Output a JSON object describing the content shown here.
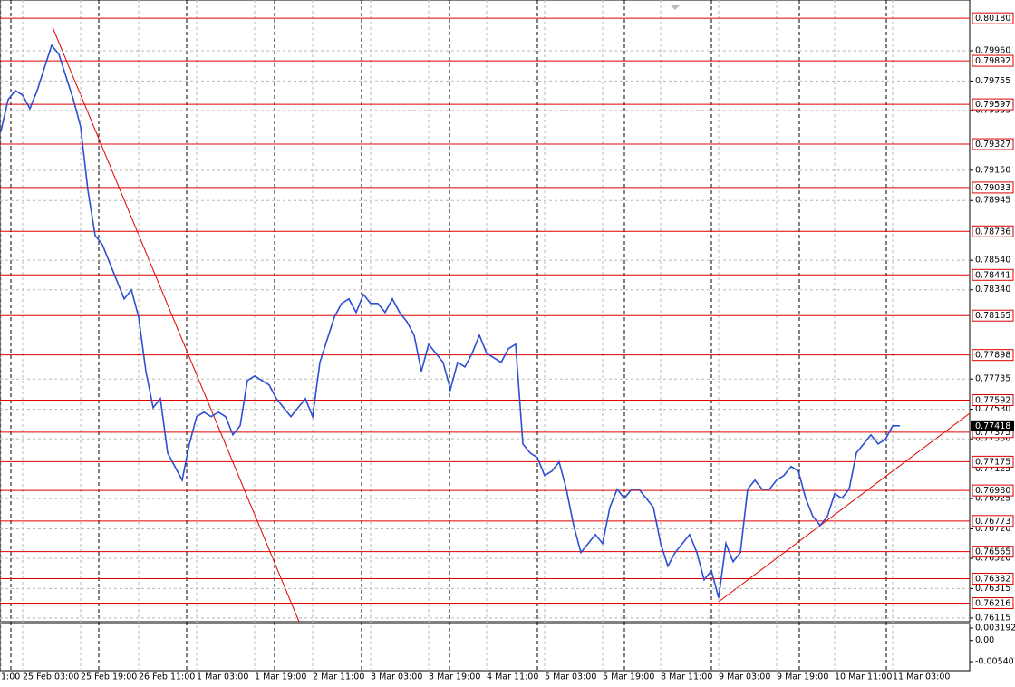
{
  "chart_data": {
    "type": "line",
    "color": "#2d4fd1",
    "ylim": [
      0.7609,
      0.80304
    ],
    "yticks": [
      {
        "value": 0.7996,
        "label": "0.79960"
      },
      {
        "value": 0.79755,
        "label": "0.79755"
      },
      {
        "value": 0.79555,
        "label": "0.79555"
      },
      {
        "value": 0.7915,
        "label": "0.79150"
      },
      {
        "value": 0.78945,
        "label": "0.78945"
      },
      {
        "value": 0.7854,
        "label": "0.78540"
      },
      {
        "value": 0.7834,
        "label": "0.78340"
      },
      {
        "value": 0.77735,
        "label": "0.77735"
      },
      {
        "value": 0.7753,
        "label": "0.77530"
      },
      {
        "value": 0.7733,
        "label": "0.77330"
      },
      {
        "value": 0.77125,
        "label": "0.77125"
      },
      {
        "value": 0.76925,
        "label": "0.76925"
      },
      {
        "value": 0.7672,
        "label": "0.76720"
      },
      {
        "value": 0.7652,
        "label": "0.76520"
      },
      {
        "value": 0.76315,
        "label": "0.76315"
      },
      {
        "value": 0.76115,
        "label": "0.76115"
      }
    ],
    "levels": [
      {
        "value": 0.8018,
        "label": "0.80180"
      },
      {
        "value": 0.79892,
        "label": "0.79892"
      },
      {
        "value": 0.79597,
        "label": "0.79597"
      },
      {
        "value": 0.79327,
        "label": "0.79327"
      },
      {
        "value": 0.79033,
        "label": "0.79033"
      },
      {
        "value": 0.78736,
        "label": "0.78736"
      },
      {
        "value": 0.78441,
        "label": "0.78441"
      },
      {
        "value": 0.78165,
        "label": "0.78165"
      },
      {
        "value": 0.77898,
        "label": "0.77898"
      },
      {
        "value": 0.77592,
        "label": "0.77592"
      },
      {
        "value": 0.77375,
        "label": "0.77375"
      },
      {
        "value": 0.77175,
        "label": "0.77175"
      },
      {
        "value": 0.7698,
        "label": "0.76980"
      },
      {
        "value": 0.76773,
        "label": "0.76773"
      },
      {
        "value": 0.76565,
        "label": "0.76565"
      },
      {
        "value": 0.76382,
        "label": "0.76382"
      },
      {
        "value": 0.76216,
        "label": "0.76216"
      }
    ],
    "level_color": "#e00000",
    "current_price": 0.77418,
    "categories": [
      "1:00",
      null,
      null,
      "25 Feb 03:00",
      null,
      null,
      null,
      null,
      null,
      null,
      null,
      "25 Feb 19:00",
      null,
      null,
      null,
      null,
      null,
      null,
      null,
      "26 Feb 11:00",
      null,
      null,
      null,
      null,
      null,
      null,
      null,
      "1 Mar 03:00",
      null,
      null,
      null,
      null,
      null,
      null,
      null,
      "1 Mar 19:00",
      null,
      null,
      null,
      null,
      null,
      null,
      null,
      "2 Mar 11:00",
      null,
      null,
      null,
      null,
      null,
      null,
      null,
      "3 Mar 03:00",
      null,
      null,
      null,
      null,
      null,
      null,
      null,
      "3 Mar 19:00",
      null,
      null,
      null,
      null,
      null,
      null,
      null,
      "4 Mar 11:00",
      null,
      null,
      null,
      null,
      null,
      null,
      null,
      "5 Mar 03:00",
      null,
      null,
      null,
      null,
      null,
      null,
      null,
      "5 Mar 19:00",
      null,
      null,
      null,
      null,
      null,
      null,
      null,
      "8 Mar 11:00",
      null,
      null,
      null,
      null,
      null,
      null,
      null,
      "9 Mar 03:00",
      null,
      null,
      null,
      null,
      null,
      null,
      null,
      "9 Mar 19:00",
      null,
      null,
      null,
      null,
      null,
      null,
      null,
      "10 Mar 11:00",
      null,
      null,
      null,
      null,
      null,
      null,
      null,
      "11 Mar 03:00",
      null
    ],
    "values": [
      0.79414,
      0.79629,
      0.7969,
      0.79659,
      0.79567,
      0.7969,
      0.79844,
      0.79997,
      0.79936,
      0.79782,
      0.79629,
      0.79444,
      0.79015,
      0.78708,
      0.78646,
      0.78523,
      0.78401,
      0.78278,
      0.78339,
      0.78155,
      0.77787,
      0.77541,
      0.77602,
      0.77234,
      0.77142,
      0.7705,
      0.77295,
      0.7748,
      0.7751,
      0.7748,
      0.7751,
      0.7748,
      0.77357,
      0.77418,
      0.77725,
      0.77756,
      0.77725,
      0.77695,
      0.77602,
      0.77541,
      0.7748,
      0.77541,
      0.77602,
      0.7748,
      0.77848,
      0.78002,
      0.78155,
      0.78247,
      0.78278,
      0.78186,
      0.78309,
      0.78247,
      0.78247,
      0.78186,
      0.78278,
      0.78186,
      0.78124,
      0.78032,
      0.77787,
      0.77971,
      0.77909,
      0.77848,
      0.77664,
      0.77848,
      0.77817,
      0.77909,
      0.78032,
      0.77909,
      0.77879,
      0.77848,
      0.7794,
      0.77971,
      0.77295,
      0.77234,
      0.77203,
      0.77081,
      0.77111,
      0.77173,
      0.76988,
      0.76743,
      0.76559,
      0.7662,
      0.76681,
      0.7662,
      0.76866,
      0.76988,
      0.76927,
      0.76988,
      0.76988,
      0.76927,
      0.76866,
      0.7662,
      0.76467,
      0.76559,
      0.7662,
      0.76681,
      0.76559,
      0.76374,
      0.76436,
      0.76252,
      0.7662,
      0.76497,
      0.76559,
      0.76988,
      0.7705,
      0.76988,
      0.76988,
      0.7705,
      0.77081,
      0.77142,
      0.77111,
      0.76927,
      0.76804,
      0.76743,
      0.76804,
      0.76958,
      0.76927,
      0.76988,
      0.77234,
      0.77295,
      0.77357,
      0.77295,
      0.77326,
      0.77418,
      0.77418
    ],
    "indicator": {
      "ylim": [
        -0.00772,
        0.00435
      ],
      "yticks": [
        0.003192,
        {
          "value": 0,
          "label": "0.00"
        },
        -0.005401
      ]
    }
  }
}
